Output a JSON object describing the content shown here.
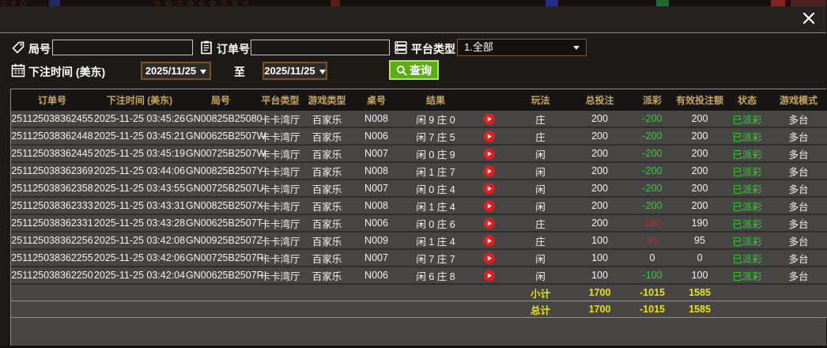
{
  "filters": {
    "round_label": "局号",
    "order_label": "订单号",
    "platform_label": "平台类型",
    "platform_value": "1.全部",
    "bet_time_label": "下注时间 (美东)",
    "date_from": "2025/11/25",
    "to_label": "至",
    "date_to": "2025/11/25",
    "search_button": "查询"
  },
  "table": {
    "headers": [
      "订单号",
      "下注时间 (美东)",
      "局号",
      "平台类型",
      "游戏类型",
      "桌号",
      "结果",
      "",
      "玩法",
      "总投注",
      "派彩",
      "有效投注额",
      "状态",
      "游戏模式"
    ],
    "rows": [
      {
        "order_id": "251125038362455",
        "bet_time": "2025-11-25 03:45:26",
        "round_id": "GN00825B25080",
        "platform": "卡卡湾厅",
        "game_type": "百家乐",
        "table_no": "N008",
        "result": "闲 9 庄 0",
        "play": "庄",
        "total_bet": "200",
        "payout": "-200",
        "payout_tone": "neg",
        "valid_bet": "200",
        "status": "已派彩",
        "mode": "多台"
      },
      {
        "order_id": "251125038362448",
        "bet_time": "2025-11-25 03:45:21",
        "round_id": "GN00625B2507W",
        "platform": "卡卡湾厅",
        "game_type": "百家乐",
        "table_no": "N006",
        "result": "闲 7 庄 5",
        "play": "庄",
        "total_bet": "200",
        "payout": "-200",
        "payout_tone": "neg",
        "valid_bet": "200",
        "status": "已派彩",
        "mode": "多台"
      },
      {
        "order_id": "251125038362445",
        "bet_time": "2025-11-25 03:45:19",
        "round_id": "GN00725B2507W",
        "platform": "卡卡湾厅",
        "game_type": "百家乐",
        "table_no": "N007",
        "result": "闲 0 庄 9",
        "play": "闲",
        "total_bet": "200",
        "payout": "-200",
        "payout_tone": "neg",
        "valid_bet": "200",
        "status": "已派彩",
        "mode": "多台"
      },
      {
        "order_id": "251125038362369",
        "bet_time": "2025-11-25 03:44:06",
        "round_id": "GN00825B2507Y",
        "platform": "卡卡湾厅",
        "game_type": "百家乐",
        "table_no": "N008",
        "result": "闲 1 庄 7",
        "play": "闲",
        "total_bet": "200",
        "payout": "-200",
        "payout_tone": "neg",
        "valid_bet": "200",
        "status": "已派彩",
        "mode": "多台"
      },
      {
        "order_id": "251125038362358",
        "bet_time": "2025-11-25 03:43:55",
        "round_id": "GN00725B2507U",
        "platform": "卡卡湾厅",
        "game_type": "百家乐",
        "table_no": "N007",
        "result": "闲 0 庄 4",
        "play": "闲",
        "total_bet": "200",
        "payout": "-200",
        "payout_tone": "neg",
        "valid_bet": "200",
        "status": "已派彩",
        "mode": "多台"
      },
      {
        "order_id": "251125038362333",
        "bet_time": "2025-11-25 03:43:31",
        "round_id": "GN00825B2507X",
        "platform": "卡卡湾厅",
        "game_type": "百家乐",
        "table_no": "N008",
        "result": "闲 1 庄 4",
        "play": "闲",
        "total_bet": "200",
        "payout": "-200",
        "payout_tone": "neg",
        "valid_bet": "200",
        "status": "已派彩",
        "mode": "多台"
      },
      {
        "order_id": "251125038362331",
        "bet_time": "2025-11-25 03:43:28",
        "round_id": "GN00625B2507T",
        "platform": "卡卡湾厅",
        "game_type": "百家乐",
        "table_no": "N006",
        "result": "闲 0 庄 6",
        "play": "庄",
        "total_bet": "200",
        "payout": "190",
        "payout_tone": "pos",
        "valid_bet": "190",
        "status": "已派彩",
        "mode": "多台"
      },
      {
        "order_id": "251125038362256",
        "bet_time": "2025-11-25 03:42:08",
        "round_id": "GN00925B2507Z",
        "platform": "卡卡湾厅",
        "game_type": "百家乐",
        "table_no": "N009",
        "result": "闲 1 庄 4",
        "play": "庄",
        "total_bet": "100",
        "payout": "95",
        "payout_tone": "pos",
        "valid_bet": "95",
        "status": "已派彩",
        "mode": "多台"
      },
      {
        "order_id": "251125038362255",
        "bet_time": "2025-11-25 03:42:06",
        "round_id": "GN00725B2507R",
        "platform": "卡卡湾厅",
        "game_type": "百家乐",
        "table_no": "N007",
        "result": "闲 7 庄 7",
        "play": "闲",
        "total_bet": "100",
        "payout": "0",
        "payout_tone": "zero",
        "valid_bet": "0",
        "status": "已派彩",
        "mode": "多台"
      },
      {
        "order_id": "251125038362250",
        "bet_time": "2025-11-25 03:42:04",
        "round_id": "GN00625B2507R",
        "platform": "卡卡湾厅",
        "game_type": "百家乐",
        "table_no": "N006",
        "result": "闲 6 庄 8",
        "play": "闲",
        "total_bet": "100",
        "payout": "-100",
        "payout_tone": "neg",
        "valid_bet": "100",
        "status": "已派彩",
        "mode": "多台"
      }
    ],
    "subtotal": {
      "label": "小计",
      "total_bet": "1700",
      "payout": "-1015",
      "valid_bet": "1585"
    },
    "total": {
      "label": "总计",
      "total_bet": "1700",
      "payout": "-1015",
      "valid_bet": "1585"
    }
  },
  "colors": {
    "header-gold": "#c9a55c",
    "row-bg": "#474645",
    "row-text": "#f2f2f2",
    "neg-green": "#2fd42f",
    "pos-red": "#b5342e",
    "summary-yellow": "#e8e408",
    "status-green": "#2fd42f",
    "accent-green": "#5aad15",
    "date-border": "#7d5126",
    "select-border": "#8a5a28"
  }
}
